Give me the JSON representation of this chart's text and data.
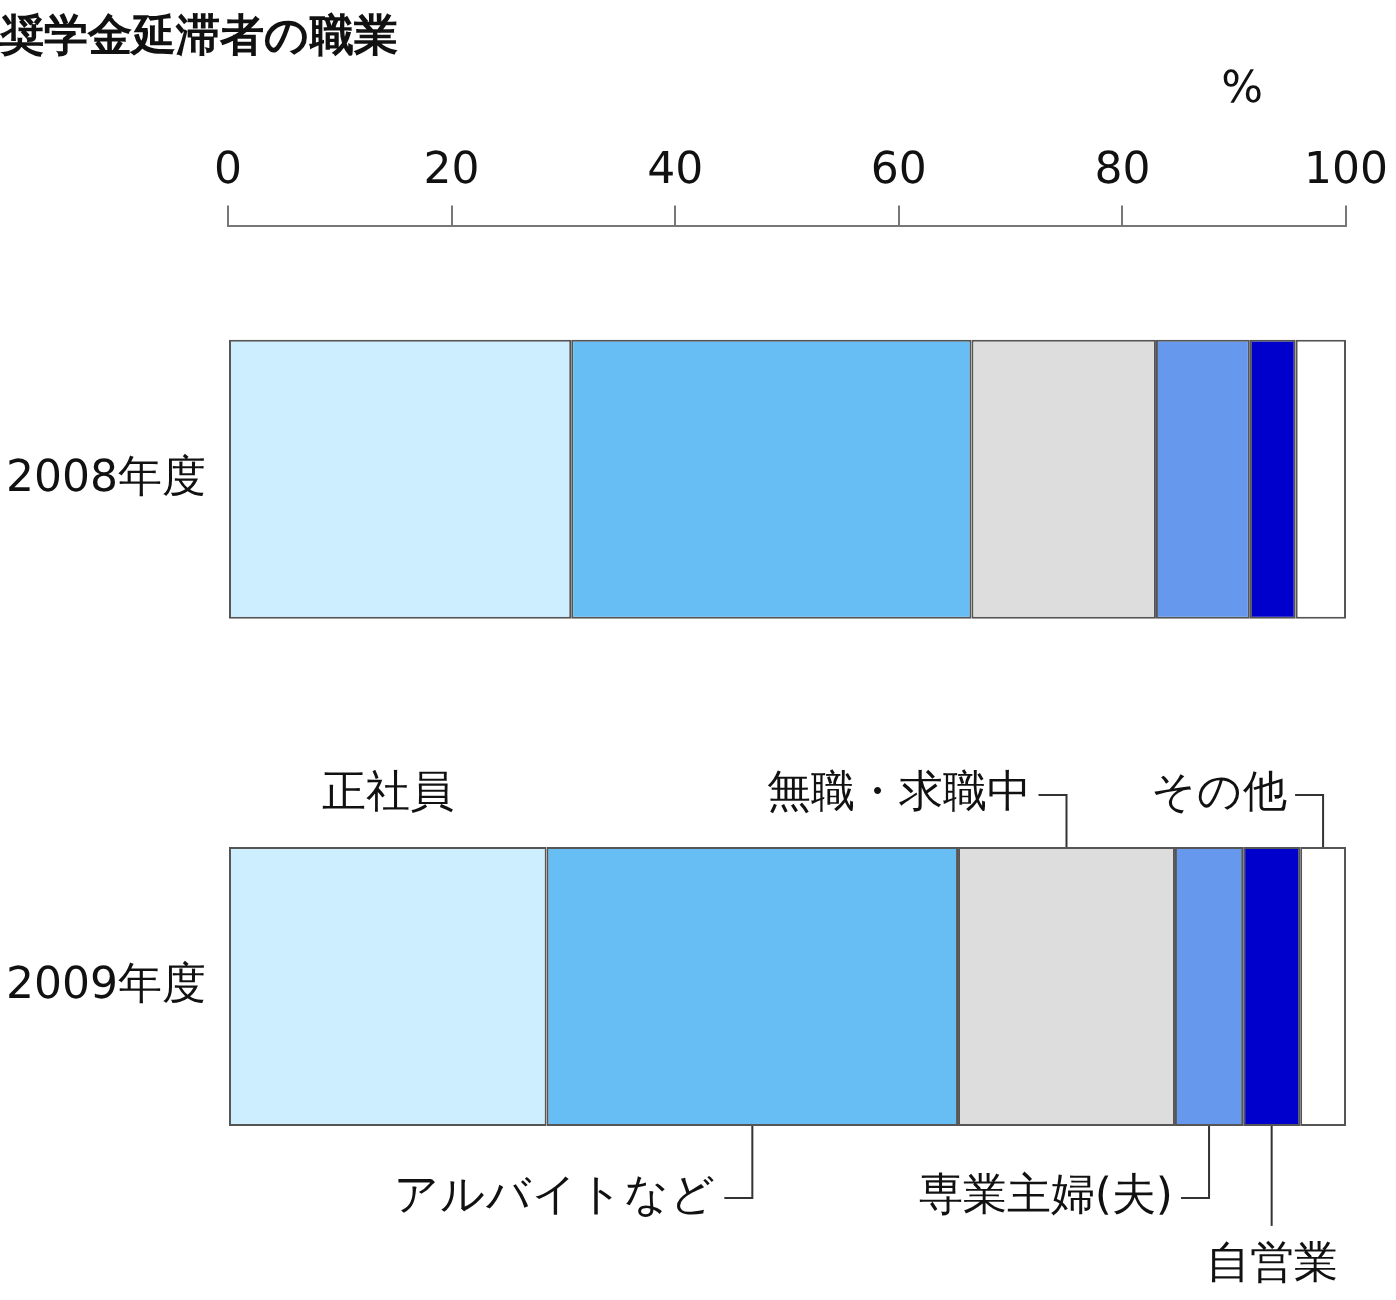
{
  "chart_data": {
    "type": "bar",
    "orientation": "horizontal",
    "stacked": true,
    "title": "奨学金延滞者の職業",
    "xlabel": "%",
    "categories": [
      "2008年度",
      "2009年度"
    ],
    "series": [
      {
        "name": "正社員",
        "color": "#cceeff",
        "values": [
          30.7,
          28.5
        ]
      },
      {
        "name": "アルバイトなど",
        "color": "#66bef4",
        "values": [
          35.8,
          36.8
        ]
      },
      {
        "name": "無職・求職中",
        "color": "#dddddd",
        "values": [
          16.5,
          19.4
        ]
      },
      {
        "name": "専業主婦(夫)",
        "color": "#6699ee",
        "values": [
          8.4,
          6.1
        ]
      },
      {
        "name": "自営業",
        "color": "#0000cc",
        "values": [
          4.1,
          5.1
        ]
      },
      {
        "name": "その他",
        "color": "#ffffff",
        "values": [
          4.5,
          4.1
        ]
      }
    ],
    "xlim": [
      0,
      100
    ],
    "xticks": [
      0,
      20,
      40,
      60,
      80,
      100
    ],
    "grid": false,
    "legend": false
  }
}
